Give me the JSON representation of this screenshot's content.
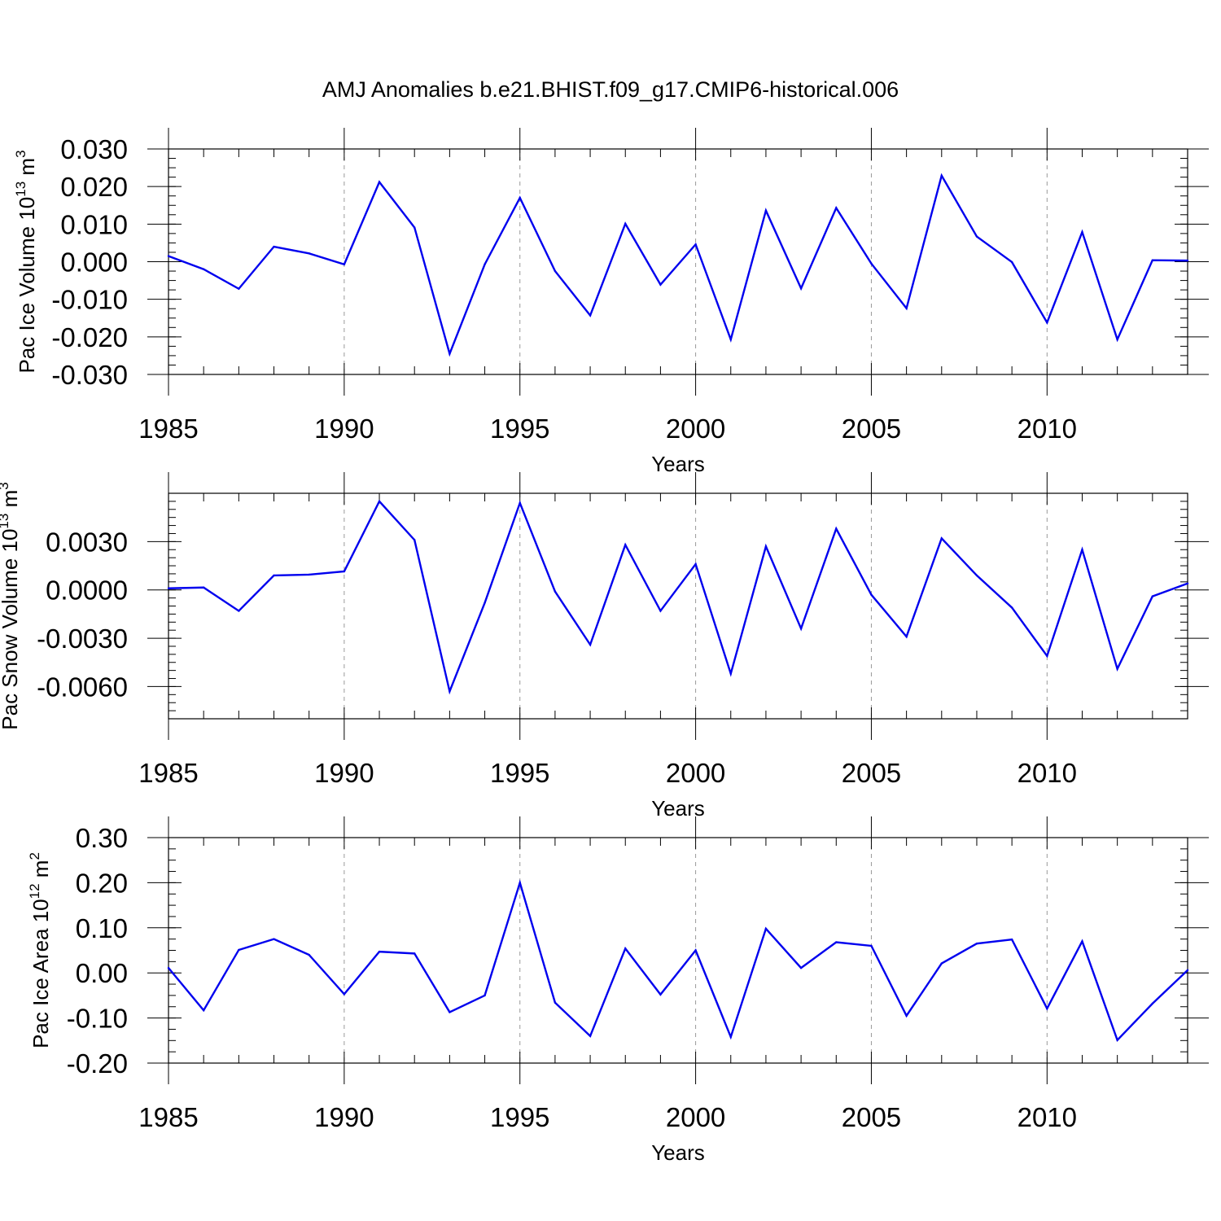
{
  "figure": {
    "title": "AMJ Anomalies b.e21.BHIST.f09_g17.CMIP6-historical.006",
    "line_color": "#0000ee"
  },
  "chart_data": [
    {
      "type": "line",
      "title": "",
      "xlabel": "Years",
      "ylabel_main": "Pac Ice Volume 10",
      "ylabel_exp": "13",
      "ylabel_unit": " m",
      "ylabel_unit_exp": "3",
      "xlim": [
        1985,
        2014
      ],
      "ylim": [
        -0.03,
        0.03
      ],
      "grid": "vertical dashed at labeled years",
      "x_ticks": [
        1985,
        1990,
        1995,
        2000,
        2005,
        2010
      ],
      "x_tick_labels": [
        "1985",
        "1990",
        "1995",
        "2000",
        "2005",
        "2010"
      ],
      "y_ticks": [
        0.03,
        0.02,
        0.01,
        0.0,
        -0.01,
        -0.02,
        -0.03
      ],
      "y_tick_labels": [
        "0.030",
        "0.020",
        "0.010",
        "0.000",
        "-0.010",
        "-0.020",
        "-0.030"
      ],
      "x": [
        1985,
        1986,
        1987,
        1988,
        1989,
        1990,
        1991,
        1992,
        1993,
        1994,
        1995,
        1996,
        1997,
        1998,
        1999,
        2000,
        2001,
        2002,
        2003,
        2004,
        2005,
        2006,
        2007,
        2008,
        2009,
        2010,
        2011,
        2012,
        2013,
        2014
      ],
      "series": [
        {
          "name": "Pac Ice Volume",
          "values": [
            0.0015,
            -0.002,
            -0.0072,
            0.004,
            0.0022,
            -0.0007,
            0.0212,
            0.0091,
            -0.0245,
            -0.0007,
            0.017,
            -0.0025,
            -0.0143,
            0.0101,
            -0.0061,
            0.0046,
            -0.0207,
            0.0136,
            -0.0071,
            0.0143,
            -0.0005,
            -0.0124,
            0.0229,
            0.0067,
            -0.0001,
            -0.0162,
            0.0079,
            -0.0207,
            0.0004,
            0.0003
          ]
        }
      ]
    },
    {
      "type": "line",
      "title": "",
      "xlabel": "Years",
      "ylabel_main": "Pac Snow Volume 10",
      "ylabel_exp": "13",
      "ylabel_unit": " m",
      "ylabel_unit_exp": "3",
      "xlim": [
        1985,
        2014
      ],
      "ylim": [
        -0.008,
        0.006
      ],
      "grid": "vertical dashed at labeled years",
      "x_ticks": [
        1985,
        1990,
        1995,
        2000,
        2005,
        2010
      ],
      "x_tick_labels": [
        "1985",
        "1990",
        "1995",
        "2000",
        "2005",
        "2010"
      ],
      "y_ticks": [
        0.003,
        0.0,
        -0.003,
        -0.006
      ],
      "y_tick_labels": [
        "0.0030",
        "0.0000",
        "-0.0030",
        "-0.0060"
      ],
      "x": [
        1985,
        1986,
        1987,
        1988,
        1989,
        1990,
        1991,
        1992,
        1993,
        1994,
        1995,
        1996,
        1997,
        1998,
        1999,
        2000,
        2001,
        2002,
        2003,
        2004,
        2005,
        2006,
        2007,
        2008,
        2009,
        2010,
        2011,
        2012,
        2013,
        2014
      ],
      "series": [
        {
          "name": "Pac Snow Volume",
          "values": [
            0.0001,
            0.00015,
            -0.0013,
            0.0009,
            0.00095,
            0.00115,
            0.0055,
            0.0031,
            -0.0063,
            -0.0008,
            0.0054,
            -0.0001,
            -0.0034,
            0.0028,
            -0.0013,
            0.0016,
            -0.0052,
            0.0027,
            -0.0024,
            0.0038,
            -0.0003,
            -0.0029,
            0.0032,
            0.0009,
            -0.0011,
            -0.0041,
            0.0025,
            -0.0049,
            -0.0004,
            0.0004
          ]
        }
      ]
    },
    {
      "type": "line",
      "title": "",
      "xlabel": "Years",
      "ylabel_main": "Pac Ice Area 10",
      "ylabel_exp": "12",
      "ylabel_unit": " m",
      "ylabel_unit_exp": "2",
      "xlim": [
        1985,
        2014
      ],
      "ylim": [
        -0.2,
        0.3
      ],
      "grid": "vertical dashed at labeled years",
      "x_ticks": [
        1985,
        1990,
        1995,
        2000,
        2005,
        2010
      ],
      "x_tick_labels": [
        "1985",
        "1990",
        "1995",
        "2000",
        "2005",
        "2010"
      ],
      "y_ticks": [
        0.3,
        0.2,
        0.1,
        0.0,
        -0.1,
        -0.2
      ],
      "y_tick_labels": [
        "0.30",
        "0.20",
        "0.10",
        "0.00",
        "-0.10",
        "-0.20"
      ],
      "x": [
        1985,
        1986,
        1987,
        1988,
        1989,
        1990,
        1991,
        1992,
        1993,
        1994,
        1995,
        1996,
        1997,
        1998,
        1999,
        2000,
        2001,
        2002,
        2003,
        2004,
        2005,
        2006,
        2007,
        2008,
        2009,
        2010,
        2011,
        2012,
        2013,
        2014
      ],
      "series": [
        {
          "name": "Pac Ice Area",
          "values": [
            0.011,
            -0.083,
            0.051,
            0.075,
            0.04,
            -0.047,
            0.047,
            0.043,
            -0.087,
            -0.05,
            0.2,
            -0.066,
            -0.14,
            0.054,
            -0.048,
            0.05,
            -0.142,
            0.098,
            0.011,
            0.068,
            0.06,
            -0.095,
            0.021,
            0.065,
            0.074,
            -0.079,
            0.07,
            -0.149,
            -0.068,
            0.006
          ]
        }
      ]
    }
  ]
}
